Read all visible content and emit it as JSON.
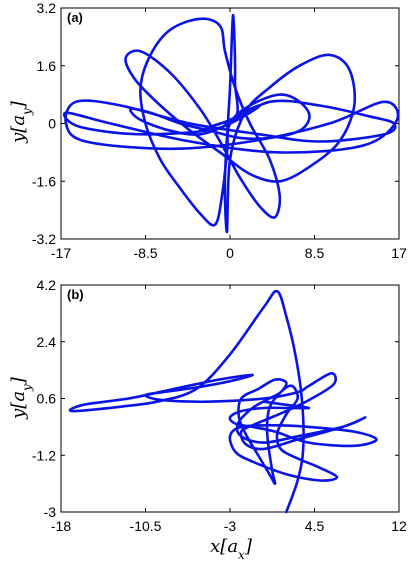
{
  "colors": {
    "trajectory": "#0a14e6",
    "axis": "#000000",
    "background": "#ffffff"
  },
  "chart_data": [
    {
      "type": "line",
      "panel_label": "(a)",
      "xlim": [
        -17,
        17
      ],
      "ylim": [
        -3.2,
        3.2
      ],
      "xticks": [
        "-17",
        "-8.5",
        "0",
        "8.5",
        "17"
      ],
      "yticks": [
        "3.2",
        "1.6",
        "0",
        "-1.6",
        "-3.2"
      ],
      "xlabel": "",
      "ylabel": "y[a_y]",
      "grid": false,
      "trajectory": [
        [
          0,
          0
        ],
        [
          4,
          0.6
        ],
        [
          9,
          0.5
        ],
        [
          14,
          0.2
        ],
        [
          16.5,
          0
        ],
        [
          15.5,
          -0.3
        ],
        [
          9,
          -0.5
        ],
        [
          3,
          -0.3
        ],
        [
          -4,
          0
        ],
        [
          -11,
          0.5
        ],
        [
          -15.5,
          0.6
        ],
        [
          -16.5,
          0
        ],
        [
          -14.5,
          -0.5
        ],
        [
          -6,
          -0.7
        ],
        [
          2,
          -0.5
        ],
        [
          10,
          0
        ],
        [
          15.5,
          0.6
        ],
        [
          16.8,
          0.1
        ],
        [
          13.5,
          -0.6
        ],
        [
          5,
          -0.8
        ],
        [
          -4,
          -0.5
        ],
        [
          -12,
          0
        ],
        [
          -16.5,
          0.3
        ],
        [
          -15,
          -0.1
        ],
        [
          -8,
          -0.3
        ],
        [
          0,
          0
        ],
        [
          0.5,
          1.2
        ],
        [
          0.3,
          3.0
        ],
        [
          0,
          1.0
        ],
        [
          -0.5,
          -1.5
        ],
        [
          -0.3,
          -3.0
        ],
        [
          0,
          -1.0
        ],
        [
          1.5,
          0.3
        ],
        [
          4,
          1.0
        ],
        [
          7,
          1.6
        ],
        [
          10,
          1.9
        ],
        [
          12,
          1.5
        ],
        [
          12.5,
          0.5
        ],
        [
          11,
          -0.5
        ],
        [
          8,
          -1.2
        ],
        [
          5,
          -1.6
        ],
        [
          2,
          -1.4
        ],
        [
          -1,
          -0.8
        ],
        [
          -4,
          -0.2
        ],
        [
          -7,
          0.5
        ],
        [
          -9.5,
          1.2
        ],
        [
          -10.5,
          1.8
        ],
        [
          -9,
          2.0
        ],
        [
          -6,
          1.4
        ],
        [
          -3,
          0.4
        ],
        [
          -1,
          -0.5
        ],
        [
          1,
          -1.5
        ],
        [
          3,
          -2.3
        ],
        [
          4.5,
          -2.6
        ],
        [
          5,
          -2.0
        ],
        [
          4,
          -1.0
        ],
        [
          2,
          0
        ],
        [
          0.5,
          1.0
        ],
        [
          -0.5,
          2.0
        ],
        [
          -1,
          2.7
        ],
        [
          -3,
          2.9
        ],
        [
          -6,
          2.6
        ],
        [
          -8,
          1.9
        ],
        [
          -9,
          1.0
        ],
        [
          -8.5,
          0
        ],
        [
          -7,
          -1.0
        ],
        [
          -5,
          -1.8
        ],
        [
          -3,
          -2.5
        ],
        [
          -1.5,
          -2.8
        ],
        [
          -0.8,
          -2.0
        ],
        [
          -0.3,
          -0.8
        ],
        [
          0,
          0
        ],
        [
          2,
          0.5
        ],
        [
          5,
          0.8
        ],
        [
          7,
          0.6
        ],
        [
          8,
          0.2
        ],
        [
          7,
          -0.2
        ],
        [
          4,
          -0.4
        ],
        [
          1,
          -0.4
        ],
        [
          -2,
          -0.2
        ],
        [
          -5,
          0
        ],
        [
          -8,
          0.3
        ],
        [
          -10,
          0.4
        ],
        [
          -9,
          0.1
        ],
        [
          -6,
          -0.2
        ],
        [
          -3,
          -0.3
        ],
        [
          0,
          0
        ],
        [
          2,
          0.3
        ],
        [
          3,
          0.5
        ],
        [
          2,
          0.4
        ],
        [
          0,
          0.1
        ],
        [
          -2,
          -0.1
        ],
        [
          -3,
          -0.2
        ],
        [
          -1,
          0
        ],
        [
          0,
          0
        ]
      ]
    },
    {
      "type": "line",
      "panel_label": "(b)",
      "xlim": [
        -18,
        12
      ],
      "ylim": [
        -3,
        4.2
      ],
      "xticks": [
        "-18",
        "-10.5",
        "-3",
        "4.5",
        "12"
      ],
      "yticks": [
        "4.2",
        "2.4",
        "0.6",
        "-1.2",
        "-3"
      ],
      "xlabel": "x[a_x]",
      "ylabel": "y[a_y]",
      "grid": false,
      "trajectory": [
        [
          2,
          -3
        ],
        [
          3,
          -2
        ],
        [
          3.5,
          -1
        ],
        [
          3.4,
          0.5
        ],
        [
          2.8,
          2
        ],
        [
          2.0,
          3.2
        ],
        [
          1.2,
          4.0
        ],
        [
          0,
          3.5
        ],
        [
          -3,
          2
        ],
        [
          -6,
          0.9
        ],
        [
          -9.5,
          0.5
        ],
        [
          -12.5,
          0.35
        ],
        [
          -17,
          0.2
        ],
        [
          -16,
          0.4
        ],
        [
          -12,
          0.6
        ],
        [
          -8,
          0.9
        ],
        [
          -4,
          1.2
        ],
        [
          -1,
          1.35
        ],
        [
          -3,
          1.15
        ],
        [
          -6,
          0.95
        ],
        [
          -9,
          0.8
        ],
        [
          -10.5,
          0.7
        ],
        [
          -9,
          0.55
        ],
        [
          -5,
          0.5
        ],
        [
          0,
          0.6
        ],
        [
          3,
          0.8
        ],
        [
          4,
          1.0
        ],
        [
          6,
          1.4
        ],
        [
          6.2,
          1.05
        ],
        [
          4,
          0.55
        ],
        [
          2,
          0.2
        ],
        [
          0,
          -0.1
        ],
        [
          -1,
          -0.25
        ],
        [
          -2,
          -0.45
        ],
        [
          -1.6,
          -0.85
        ],
        [
          0,
          -1.0
        ],
        [
          3,
          -0.7
        ],
        [
          7,
          -0.3
        ],
        [
          9,
          0
        ],
        [
          7,
          -0.3
        ],
        [
          3,
          -0.6
        ],
        [
          0,
          -0.8
        ],
        [
          -2,
          -0.6
        ],
        [
          -2.3,
          -0.2
        ],
        [
          -1,
          0.3
        ],
        [
          0.5,
          0.6
        ],
        [
          1.5,
          0.8
        ],
        [
          2,
          1.1
        ],
        [
          1,
          1.2
        ],
        [
          -0.5,
          0.9
        ],
        [
          -2,
          0.6
        ],
        [
          -2.2,
          0
        ],
        [
          -1.5,
          -0.6
        ],
        [
          -0.5,
          -1.2
        ],
        [
          0.5,
          -1.8
        ],
        [
          1,
          -2.1
        ],
        [
          0.7,
          -1.6
        ],
        [
          0.3,
          -0.5
        ],
        [
          0.5,
          0.3
        ],
        [
          1.5,
          0.8
        ],
        [
          2.5,
          1.0
        ],
        [
          3,
          0.6
        ],
        [
          2,
          0.1
        ],
        [
          1.2,
          -0.5
        ],
        [
          1.5,
          -1.0
        ],
        [
          3,
          -1.3
        ],
        [
          5,
          -1.6
        ],
        [
          6.5,
          -1.9
        ],
        [
          5,
          -2.0
        ],
        [
          2,
          -1.8
        ],
        [
          -1,
          -1.4
        ],
        [
          -2.5,
          -1.1
        ],
        [
          -3,
          -0.6
        ],
        [
          -2,
          -0.3
        ],
        [
          1,
          -0.25
        ],
        [
          4,
          -0.3
        ],
        [
          8,
          -0.45
        ],
        [
          10,
          -0.7
        ],
        [
          8,
          -0.9
        ],
        [
          4,
          -0.8
        ],
        [
          1,
          -0.45
        ],
        [
          -1,
          -0.3
        ],
        [
          -2.5,
          -0.2
        ],
        [
          -3,
          0
        ],
        [
          -2,
          0.2
        ],
        [
          0,
          0.3
        ],
        [
          2,
          0.3
        ],
        [
          4,
          0.3
        ],
        [
          2,
          0.4
        ],
        [
          0,
          0.5
        ]
      ]
    }
  ]
}
